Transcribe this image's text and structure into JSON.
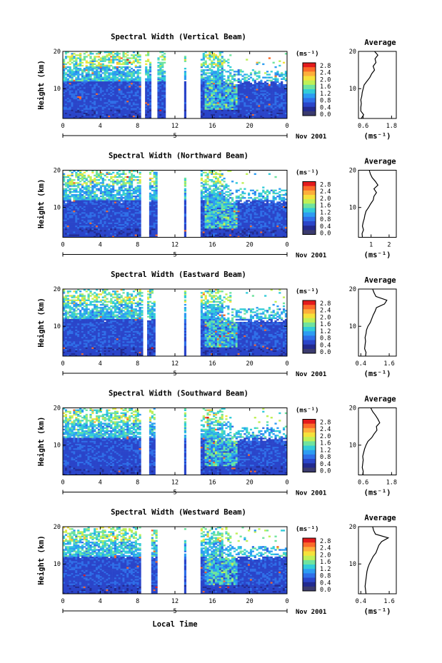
{
  "figure": {
    "ylabel": "Height (km)",
    "xlabel": "Local Time",
    "date_label": "Nov 2001",
    "day_label": "5",
    "colorbar": {
      "unit": "(ms⁻¹)",
      "ticks": [
        "2.8",
        "2.4",
        "2.0",
        "1.6",
        "1.2",
        "0.8",
        "0.4",
        "0.0"
      ],
      "colors": [
        "#e31a1c",
        "#fb6a2a",
        "#fdae3b",
        "#f5e13b",
        "#bff056",
        "#6fe39e",
        "#33ccd8",
        "#2d9cf2",
        "#2f6fe8",
        "#2a45c9",
        "#222a8f",
        "#3b3b6e"
      ]
    },
    "avg_title": "Average",
    "avg_unit": "(ms⁻¹)"
  },
  "chart_data": [
    {
      "type": "heatmap",
      "title": "Spectral Width (Vertical Beam)",
      "x_ticks": [
        "0",
        "4",
        "8",
        "12",
        "16",
        "20",
        "0"
      ],
      "y_ticks": [
        "20",
        "10"
      ],
      "xlim": [
        0,
        24
      ],
      "ylim": [
        2,
        20
      ],
      "gaps": [
        [
          8.4,
          8.7
        ],
        [
          9.5,
          10.2
        ],
        [
          10.9,
          13.0
        ],
        [
          13.3,
          14.8
        ]
      ],
      "average": {
        "x_ticks": [
          "0.6",
          "1.8"
        ],
        "xlim": [
          0.4,
          2.0
        ],
        "y_ticks": [
          "20",
          "10"
        ],
        "ylim": [
          2,
          20
        ],
        "profile": [
          [
            0.52,
            2
          ],
          [
            0.62,
            3
          ],
          [
            0.5,
            4
          ],
          [
            0.5,
            5
          ],
          [
            0.52,
            6
          ],
          [
            0.5,
            7
          ],
          [
            0.54,
            8
          ],
          [
            0.56,
            9
          ],
          [
            0.6,
            10
          ],
          [
            0.64,
            11
          ],
          [
            0.76,
            12
          ],
          [
            0.88,
            13
          ],
          [
            0.96,
            14
          ],
          [
            1.08,
            15
          ],
          [
            1.02,
            16
          ],
          [
            1.14,
            17
          ],
          [
            1.1,
            18
          ],
          [
            1.22,
            19
          ],
          [
            1.08,
            20
          ]
        ]
      }
    },
    {
      "type": "heatmap",
      "title": "Spectral Width (Northward Beam)",
      "x_ticks": [
        "0",
        "4",
        "8",
        "12",
        "16",
        "20",
        "0"
      ],
      "y_ticks": [
        "20",
        "10"
      ],
      "xlim": [
        0,
        24
      ],
      "ylim": [
        2,
        20
      ],
      "gaps": [
        [
          8.4,
          9.3
        ],
        [
          10.2,
          13.0
        ],
        [
          13.2,
          14.8
        ]
      ],
      "average": {
        "x_ticks": [
          "1",
          "2"
        ],
        "xlim": [
          0.3,
          2.4
        ],
        "y_ticks": [
          "20",
          "10"
        ],
        "ylim": [
          2,
          20
        ],
        "profile": [
          [
            0.52,
            2
          ],
          [
            0.5,
            3
          ],
          [
            0.58,
            4
          ],
          [
            0.52,
            5
          ],
          [
            0.56,
            6
          ],
          [
            0.62,
            7
          ],
          [
            0.66,
            8
          ],
          [
            0.72,
            9
          ],
          [
            0.86,
            10
          ],
          [
            0.98,
            11
          ],
          [
            1.12,
            12
          ],
          [
            1.16,
            13
          ],
          [
            1.3,
            14
          ],
          [
            1.16,
            15
          ],
          [
            1.38,
            16
          ],
          [
            1.24,
            17
          ],
          [
            1.06,
            18
          ],
          [
            0.96,
            19
          ],
          [
            0.9,
            20
          ]
        ]
      }
    },
    {
      "type": "heatmap",
      "title": "Spectral Width (Eastward Beam)",
      "x_ticks": [
        "0",
        "4",
        "8",
        "12",
        "16",
        "20",
        "0"
      ],
      "y_ticks": [
        "20",
        "10"
      ],
      "xlim": [
        0,
        24
      ],
      "ylim": [
        2,
        20
      ],
      "gaps": [
        [
          8.5,
          9.0
        ],
        [
          10.0,
          13.0
        ],
        [
          13.2,
          14.8
        ]
      ],
      "average": {
        "x_ticks": [
          "0.4",
          "1.6"
        ],
        "xlim": [
          0.3,
          1.9
        ],
        "y_ticks": [
          "20",
          "10"
        ],
        "ylim": [
          2,
          20
        ],
        "profile": [
          [
            0.6,
            2
          ],
          [
            0.62,
            3
          ],
          [
            0.56,
            4
          ],
          [
            0.58,
            5
          ],
          [
            0.6,
            6
          ],
          [
            0.58,
            7
          ],
          [
            0.62,
            8
          ],
          [
            0.64,
            9
          ],
          [
            0.7,
            10
          ],
          [
            0.8,
            11
          ],
          [
            0.86,
            12
          ],
          [
            0.92,
            13
          ],
          [
            1.0,
            14
          ],
          [
            1.06,
            15
          ],
          [
            1.4,
            16
          ],
          [
            1.5,
            17
          ],
          [
            1.04,
            18
          ],
          [
            0.96,
            19
          ],
          [
            0.9,
            20
          ]
        ]
      }
    },
    {
      "type": "heatmap",
      "title": "Spectral Width (Southward Beam)",
      "x_ticks": [
        "0",
        "4",
        "8",
        "12",
        "16",
        "20",
        "0"
      ],
      "y_ticks": [
        "20",
        "10"
      ],
      "xlim": [
        0,
        24
      ],
      "ylim": [
        2,
        20
      ],
      "gaps": [
        [
          8.4,
          9.2
        ],
        [
          10.0,
          13.0
        ],
        [
          13.2,
          14.8
        ]
      ],
      "average": {
        "x_ticks": [
          "0.6",
          "1.8"
        ],
        "xlim": [
          0.4,
          2.0
        ],
        "y_ticks": [
          "20",
          "10"
        ],
        "ylim": [
          2,
          20
        ],
        "profile": [
          [
            0.58,
            2
          ],
          [
            0.6,
            3
          ],
          [
            0.56,
            4
          ],
          [
            0.58,
            5
          ],
          [
            0.6,
            6
          ],
          [
            0.58,
            7
          ],
          [
            0.62,
            8
          ],
          [
            0.66,
            9
          ],
          [
            0.72,
            10
          ],
          [
            0.8,
            11
          ],
          [
            0.96,
            12
          ],
          [
            1.06,
            13
          ],
          [
            1.18,
            14
          ],
          [
            1.16,
            15
          ],
          [
            1.3,
            16
          ],
          [
            1.22,
            17
          ],
          [
            1.12,
            18
          ],
          [
            1.0,
            19
          ],
          [
            0.92,
            20
          ]
        ]
      }
    },
    {
      "type": "heatmap",
      "title": "Spectral Width (Westward Beam)",
      "x_ticks": [
        "0",
        "4",
        "8",
        "12",
        "16",
        "20",
        "0"
      ],
      "y_ticks": [
        "20",
        "10"
      ],
      "xlim": [
        0,
        24
      ],
      "ylim": [
        2,
        20
      ],
      "gaps": [
        [
          8.4,
          9.4
        ],
        [
          10.2,
          13.0
        ],
        [
          13.3,
          14.8
        ]
      ],
      "average": {
        "x_ticks": [
          "0.4",
          "1.6"
        ],
        "xlim": [
          0.3,
          1.9
        ],
        "y_ticks": [
          "20",
          "10"
        ],
        "ylim": [
          2,
          20
        ],
        "profile": [
          [
            0.62,
            2
          ],
          [
            0.6,
            3
          ],
          [
            0.58,
            4
          ],
          [
            0.6,
            5
          ],
          [
            0.62,
            6
          ],
          [
            0.64,
            7
          ],
          [
            0.66,
            8
          ],
          [
            0.7,
            9
          ],
          [
            0.76,
            10
          ],
          [
            0.84,
            11
          ],
          [
            0.92,
            12
          ],
          [
            1.04,
            13
          ],
          [
            1.1,
            14
          ],
          [
            1.16,
            15
          ],
          [
            1.28,
            16
          ],
          [
            1.56,
            17
          ],
          [
            1.02,
            18
          ],
          [
            0.94,
            19
          ],
          [
            0.9,
            20
          ]
        ]
      }
    }
  ]
}
